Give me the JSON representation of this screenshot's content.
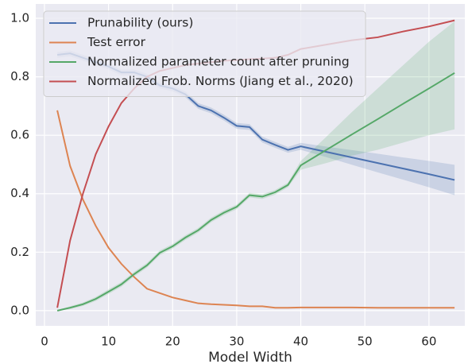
{
  "chart_data": {
    "type": "line",
    "xlabel": "Model Width",
    "x": [
      2,
      4,
      6,
      8,
      10,
      12,
      14,
      16,
      18,
      20,
      22,
      24,
      26,
      28,
      30,
      32,
      34,
      36,
      38,
      40,
      44,
      48,
      52,
      56,
      60,
      64
    ],
    "series": [
      {
        "name": "Prunability (ours)",
        "color": "#4c72b0",
        "values": [
          0.875,
          0.88,
          0.865,
          0.85,
          0.835,
          0.815,
          0.815,
          0.8,
          0.77,
          0.76,
          0.74,
          0.7,
          0.685,
          0.66,
          0.632,
          0.628,
          0.585,
          0.567,
          0.55,
          0.562,
          0.543,
          0.524,
          0.505,
          0.486,
          0.467,
          0.447
        ],
        "lower": [
          0.865,
          0.87,
          0.855,
          0.84,
          0.825,
          0.805,
          0.805,
          0.79,
          0.76,
          0.75,
          0.73,
          0.69,
          0.675,
          0.65,
          0.622,
          0.618,
          0.575,
          0.557,
          0.54,
          0.55,
          0.525,
          0.499,
          0.473,
          0.448,
          0.422,
          0.395
        ],
        "upper": [
          0.885,
          0.89,
          0.875,
          0.86,
          0.845,
          0.825,
          0.825,
          0.81,
          0.78,
          0.77,
          0.75,
          0.71,
          0.695,
          0.67,
          0.642,
          0.638,
          0.595,
          0.577,
          0.56,
          0.574,
          0.561,
          0.549,
          0.537,
          0.524,
          0.512,
          0.499
        ]
      },
      {
        "name": "Test error",
        "color": "#dd8452",
        "values": [
          0.685,
          0.495,
          0.38,
          0.29,
          0.215,
          0.16,
          0.115,
          0.075,
          0.06,
          0.045,
          0.035,
          0.025,
          0.022,
          0.02,
          0.018,
          0.015,
          0.015,
          0.01,
          0.01,
          0.011,
          0.011,
          0.011,
          0.01,
          0.01,
          0.01,
          0.01
        ]
      },
      {
        "name": "Normalized parameter count after pruning",
        "color": "#55a868",
        "values": [
          0.0,
          0.01,
          0.022,
          0.04,
          0.065,
          0.09,
          0.125,
          0.155,
          0.198,
          0.22,
          0.25,
          0.275,
          0.31,
          0.335,
          0.355,
          0.395,
          0.39,
          0.405,
          0.43,
          0.497,
          0.55,
          0.603,
          0.655,
          0.708,
          0.76,
          0.813
        ],
        "lower": [
          0.0,
          0.005,
          0.016,
          0.033,
          0.057,
          0.082,
          0.117,
          0.147,
          0.19,
          0.212,
          0.242,
          0.267,
          0.302,
          0.327,
          0.347,
          0.387,
          0.382,
          0.397,
          0.422,
          0.482,
          0.505,
          0.53,
          0.55,
          0.575,
          0.6,
          0.62
        ],
        "upper": [
          0.002,
          0.015,
          0.028,
          0.047,
          0.073,
          0.098,
          0.133,
          0.163,
          0.206,
          0.228,
          0.258,
          0.283,
          0.318,
          0.343,
          0.363,
          0.403,
          0.398,
          0.413,
          0.438,
          0.512,
          0.595,
          0.68,
          0.76,
          0.84,
          0.92,
          0.99
        ]
      },
      {
        "name": "Normalized Frob. Norms (Jiang et al., 2020)",
        "color": "#c44e52",
        "values": [
          0.01,
          0.24,
          0.4,
          0.535,
          0.63,
          0.71,
          0.76,
          0.8,
          0.82,
          0.83,
          0.84,
          0.845,
          0.85,
          0.855,
          0.857,
          0.86,
          0.862,
          0.865,
          0.875,
          0.895,
          0.91,
          0.925,
          0.935,
          0.955,
          0.972,
          0.993
        ]
      }
    ],
    "xlim": [
      -1.36,
      65.6
    ],
    "ylim": [
      -0.052,
      1.049
    ],
    "xticks": [
      0,
      10,
      20,
      30,
      40,
      50,
      60
    ],
    "yticks": [
      {
        "value": 0,
        "label": "0.0"
      },
      0.2,
      0.4,
      0.6,
      0.8,
      {
        "value": 1,
        "label": "1.0"
      }
    ],
    "grid": true,
    "legend": "upper left"
  }
}
